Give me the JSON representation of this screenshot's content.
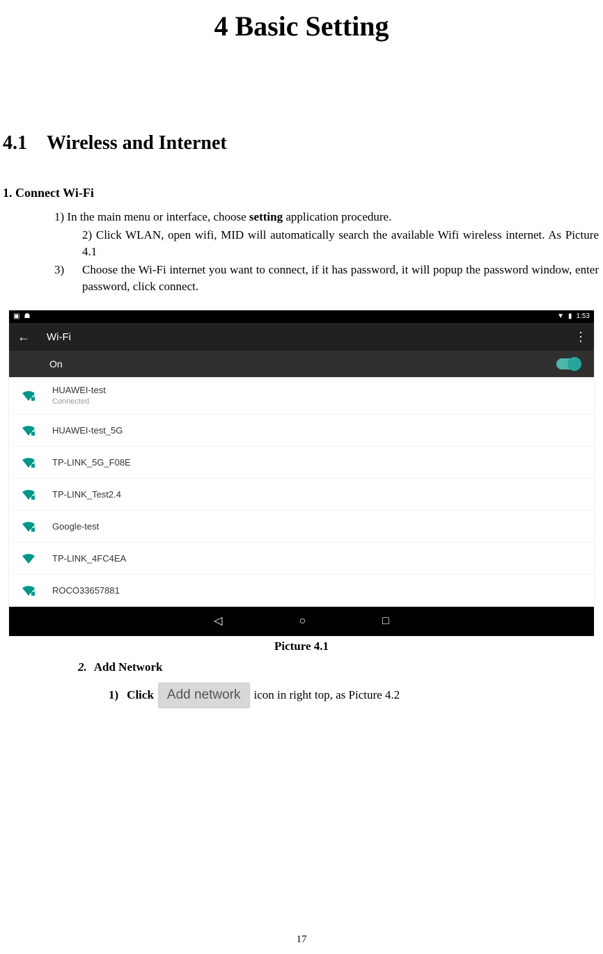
{
  "chapter": {
    "title": "4 Basic Setting"
  },
  "section": {
    "number": "4.1",
    "title": "Wireless and Internet"
  },
  "subhead1": "1. Connect Wi-Fi",
  "steps": {
    "s1_pre": "1) In the main menu or interface, choose ",
    "s1_bold": "setting",
    "s1_post": " application procedure.",
    "s2": "2)  Click  WLAN,  open  wifi,  MID  will  automatically  search  the  available  Wifi wireless internet. As Picture 4.1",
    "s3_marker": "3)",
    "s3": "Choose the Wi-Fi internet you want to connect, if it has password, it will popup the password window, enter password, click connect."
  },
  "screenshot": {
    "status_time": "1:53",
    "appbar_title": "Wi-Fi",
    "on_label": "On",
    "wifi_items": [
      {
        "name": "HUAWEI-test",
        "status": "Connected",
        "locked": true
      },
      {
        "name": "HUAWEI-test_5G",
        "status": "",
        "locked": true
      },
      {
        "name": "TP-LINK_5G_F08E",
        "status": "",
        "locked": true
      },
      {
        "name": "TP-LINK_Test2.4",
        "status": "",
        "locked": true
      },
      {
        "name": "Google-test",
        "status": "",
        "locked": true
      },
      {
        "name": "TP-LINK_4FC4EA",
        "status": "",
        "locked": false
      },
      {
        "name": "ROCO33657881",
        "status": "",
        "locked": true
      }
    ],
    "colors": {
      "wifi_icon": "#009688",
      "statusbar_bg": "#000000",
      "appbar_bg": "#212121",
      "on_bg": "#303030",
      "toggle_track": "#4db6ac",
      "toggle_thumb": "#26a69a"
    }
  },
  "caption": "Picture 4.1",
  "list2": {
    "marker": "2.",
    "text": "Add Network"
  },
  "list2_sub": {
    "marker": "1)",
    "pre": "Click",
    "button": "Add network",
    "post": "icon in right top, as Picture 4.2"
  },
  "page_number": "17"
}
